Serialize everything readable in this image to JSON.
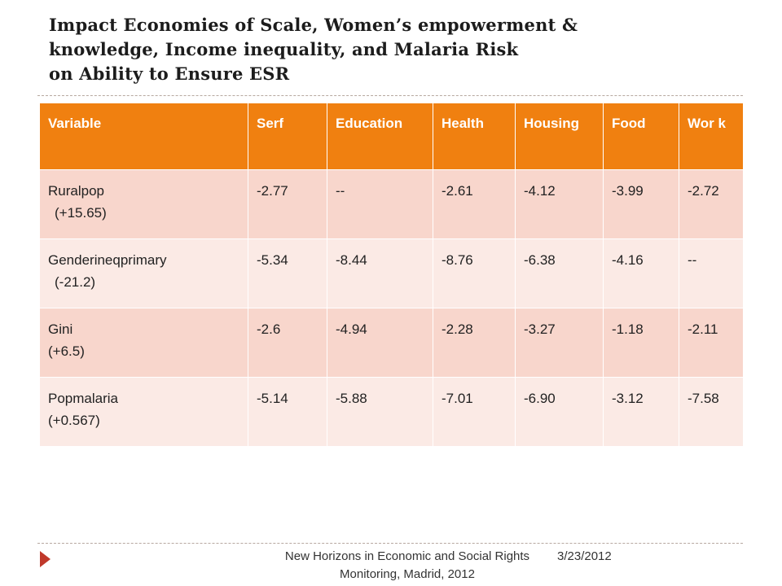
{
  "title": {
    "line1": "Impact Economies of Scale, Women’s empowerment &",
    "line2": "knowledge, Income inequality, and Malaria Risk",
    "line3": "on Ability to Ensure ESR"
  },
  "table": {
    "headers": [
      "Variable",
      "Serf",
      "Education",
      "Health",
      "Housing",
      "Food",
      "Wor k"
    ],
    "rows": [
      {
        "variable": "Ruralpop",
        "coef": "(+15.65)",
        "values": [
          "-2.77",
          "--",
          "-2.61",
          "-4.12",
          "-3.99",
          "-2.72"
        ]
      },
      {
        "variable": "Genderineqprimary",
        "coef": "(-21.2)",
        "values": [
          "-5.34",
          "-8.44",
          "-8.76",
          "-6.38",
          "-4.16",
          "--"
        ]
      },
      {
        "variable": "Gini",
        "coef": "(+6.5)",
        "values": [
          "-2.6",
          "-4.94",
          "-2.28",
          "-3.27",
          "-1.18",
          "-2.11"
        ]
      },
      {
        "variable": "Popmalaria",
        "coef": "(+0.567)",
        "values": [
          "-5.14",
          "-5.88",
          "-7.01",
          "-6.90",
          "-3.12",
          "-7.58"
        ]
      }
    ]
  },
  "footer": {
    "text": "New Horizons in Economic and Social Rights Monitoring, Madrid, 2012",
    "date": "3/23/2012"
  },
  "colors": {
    "header_bg": "#f08010",
    "row_odd": "#f8d6cc",
    "row_even": "#fbeae5",
    "bullet": "#c0392b"
  },
  "icons": {
    "footer_bullet": "chevron-right-icon"
  }
}
